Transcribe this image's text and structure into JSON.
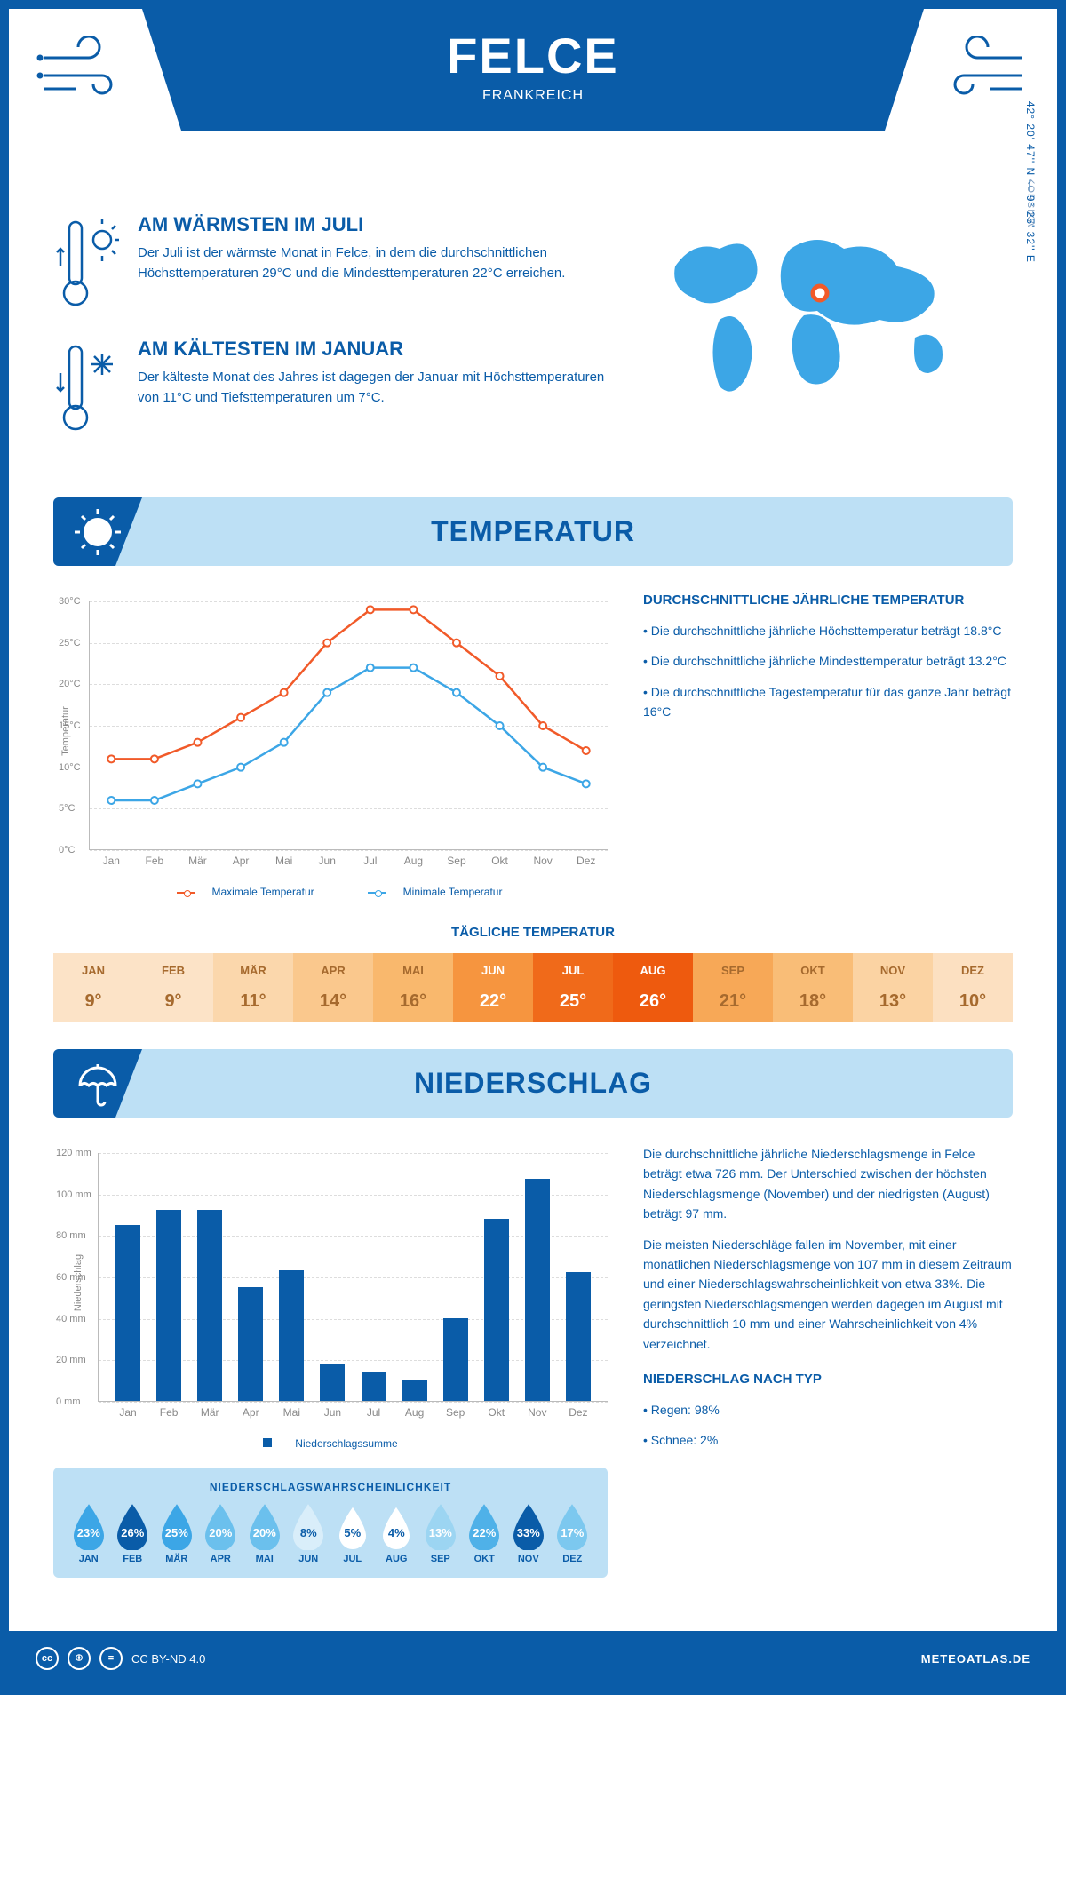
{
  "header": {
    "title": "FELCE",
    "subtitle": "FRANKREICH",
    "coords": "42° 20' 47'' N — 9° 25' 32'' E",
    "region": "KORSIKA"
  },
  "intro": {
    "warm": {
      "title": "AM WÄRMSTEN IM JULI",
      "text": "Der Juli ist der wärmste Monat in Felce, in dem die durchschnittlichen Höchsttemperaturen 29°C und die Mindesttemperaturen 22°C erreichen."
    },
    "cold": {
      "title": "AM KÄLTESTEN IM JANUAR",
      "text": "Der kälteste Monat des Jahres ist dagegen der Januar mit Höchsttemperaturen von 11°C und Tiefsttemperaturen um 7°C."
    }
  },
  "temp_section": {
    "header": "TEMPERATUR",
    "chart": {
      "type": "line",
      "y_axis_title": "Temperatur",
      "months": [
        "Jan",
        "Feb",
        "Mär",
        "Apr",
        "Mai",
        "Jun",
        "Jul",
        "Aug",
        "Sep",
        "Okt",
        "Nov",
        "Dez"
      ],
      "ylim": [
        0,
        30
      ],
      "ytick_step": 5,
      "ytick_labels": [
        "0°C",
        "5°C",
        "10°C",
        "15°C",
        "20°C",
        "25°C",
        "30°C"
      ],
      "series": [
        {
          "name": "Maximale Temperatur",
          "color": "#f15a29",
          "values": [
            11,
            11,
            13,
            16,
            19,
            25,
            29,
            29,
            25,
            21,
            15,
            12
          ]
        },
        {
          "name": "Minimale Temperatur",
          "color": "#3ca6e6",
          "values": [
            6,
            6,
            8,
            10,
            13,
            19,
            22,
            22,
            19,
            15,
            10,
            8
          ]
        }
      ],
      "grid_color": "#dddddd",
      "axis_color": "#bbbbbb",
      "label_fontsize": 11
    },
    "text": {
      "title": "DURCHSCHNITTLICHE JÄHRLICHE TEMPERATUR",
      "bullets": [
        "• Die durchschnittliche jährliche Höchsttemperatur beträgt 18.8°C",
        "• Die durchschnittliche jährliche Mindesttemperatur beträgt 13.2°C",
        "• Die durchschnittliche Tagestemperatur für das ganze Jahr beträgt 16°C"
      ]
    },
    "daily": {
      "title": "TÄGLICHE TEMPERATUR",
      "months": [
        "JAN",
        "FEB",
        "MÄR",
        "APR",
        "MAI",
        "JUN",
        "JUL",
        "AUG",
        "SEP",
        "OKT",
        "NOV",
        "DEZ"
      ],
      "values": [
        "9°",
        "9°",
        "11°",
        "14°",
        "16°",
        "22°",
        "25°",
        "26°",
        "21°",
        "18°",
        "13°",
        "10°"
      ],
      "cell_bg": [
        "#fce3c7",
        "#fce3c7",
        "#fbd7ac",
        "#fac88d",
        "#f9b86d",
        "#f6953f",
        "#f06a1a",
        "#ee5a0e",
        "#f7a857",
        "#f9bd77",
        "#fbd3a3",
        "#fce0c1"
      ],
      "cell_fg": [
        "#a66a2e",
        "#a66a2e",
        "#a66a2e",
        "#a66a2e",
        "#a66a2e",
        "#ffffff",
        "#ffffff",
        "#ffffff",
        "#a66a2e",
        "#a66a2e",
        "#a66a2e",
        "#a66a2e"
      ]
    }
  },
  "precip_section": {
    "header": "NIEDERSCHLAG",
    "chart": {
      "type": "bar",
      "y_axis_title": "Niederschlag",
      "months": [
        "Jan",
        "Feb",
        "Mär",
        "Apr",
        "Mai",
        "Jun",
        "Jul",
        "Aug",
        "Sep",
        "Okt",
        "Nov",
        "Dez"
      ],
      "values": [
        85,
        92,
        92,
        55,
        63,
        18,
        14,
        10,
        40,
        88,
        107,
        62
      ],
      "ylim": [
        0,
        120
      ],
      "ytick_step": 20,
      "ytick_labels": [
        "0 mm",
        "20 mm",
        "40 mm",
        "60 mm",
        "80 mm",
        "100 mm",
        "120 mm"
      ],
      "bar_color": "#0a5ca8",
      "legend": "Niederschlagssumme"
    },
    "text": {
      "p1": "Die durchschnittliche jährliche Niederschlagsmenge in Felce beträgt etwa 726 mm. Der Unterschied zwischen der höchsten Niederschlagsmenge (November) und der niedrigsten (August) beträgt 97 mm.",
      "p2": "Die meisten Niederschläge fallen im November, mit einer monatlichen Niederschlagsmenge von 107 mm in diesem Zeitraum und einer Niederschlagswahrscheinlichkeit von etwa 33%. Die geringsten Niederschlagsmengen werden dagegen im August mit durchschnittlich 10 mm und einer Wahrscheinlichkeit von 4% verzeichnet.",
      "type_title": "NIEDERSCHLAG NACH TYP",
      "type_items": [
        "• Regen: 98%",
        "• Schnee: 2%"
      ]
    },
    "prob": {
      "title": "NIEDERSCHLAGSWAHRSCHEINLICHKEIT",
      "months": [
        "JAN",
        "FEB",
        "MÄR",
        "APR",
        "MAI",
        "JUN",
        "JUL",
        "AUG",
        "SEP",
        "OKT",
        "NOV",
        "DEZ"
      ],
      "values": [
        "23%",
        "26%",
        "25%",
        "20%",
        "20%",
        "8%",
        "5%",
        "4%",
        "13%",
        "22%",
        "33%",
        "17%"
      ],
      "drop_bg": [
        "#3ca6e6",
        "#0a5ca8",
        "#3ca6e6",
        "#6bc0ed",
        "#6bc0ed",
        "#d9eefa",
        "#ffffff",
        "#ffffff",
        "#9cd5f2",
        "#4fb1e8",
        "#0a5ca8",
        "#7cc8ef"
      ],
      "drop_fg": [
        "#ffffff",
        "#ffffff",
        "#ffffff",
        "#ffffff",
        "#ffffff",
        "#0a5ca8",
        "#0a5ca8",
        "#0a5ca8",
        "#ffffff",
        "#ffffff",
        "#ffffff",
        "#ffffff"
      ]
    }
  },
  "footer": {
    "license": "CC BY-ND 4.0",
    "site": "METEOATLAS.DE"
  },
  "colors": {
    "primary": "#0a5ca8",
    "light_blue": "#bde0f5",
    "accent_blue": "#3ca6e6"
  }
}
